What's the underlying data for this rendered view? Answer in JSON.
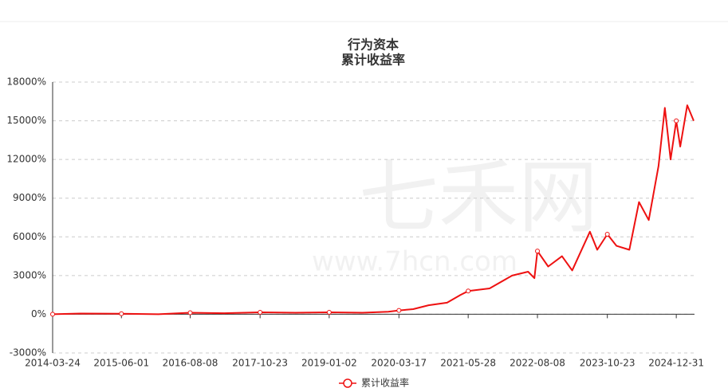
{
  "chart_data": {
    "type": "line",
    "title": "行为资本",
    "subtitle": "累计收益率",
    "watermark": [
      "七禾网",
      "www.7hcn.com"
    ],
    "x": [
      "2014-03-24",
      "2014-09-15",
      "2015-06-01",
      "2016-01-20",
      "2016-08-08",
      "2017-03-10",
      "2017-10-23",
      "2018-06-01",
      "2019-01-02",
      "2019-08-01",
      "2020-01-10",
      "2020-03-17",
      "2020-06-15",
      "2020-09-20",
      "2021-01-15",
      "2021-04-10",
      "2021-05-28",
      "2021-10-10",
      "2022-03-01",
      "2022-06-10",
      "2022-07-20",
      "2022-08-08",
      "2022-10-15",
      "2023-01-10",
      "2023-03-15",
      "2023-07-05",
      "2023-08-20",
      "2023-10-23",
      "2023-12-20",
      "2024-03-10",
      "2024-05-10",
      "2024-07-10",
      "2024-09-10",
      "2024-10-20",
      "2024-11-25",
      "2024-12-31",
      "2025-01-25",
      "2025-03-10",
      "2025-04-20"
    ],
    "series": [
      {
        "name": "累计收益率",
        "color": "#ee1111",
        "values": [
          0,
          60,
          40,
          0,
          120,
          80,
          150,
          120,
          150,
          120,
          200,
          300,
          400,
          700,
          900,
          1500,
          1800,
          2000,
          3000,
          3300,
          2800,
          4900,
          3700,
          4500,
          3400,
          6400,
          5000,
          6200,
          5300,
          5000,
          8700,
          7300,
          11500,
          16000,
          12000,
          15000,
          13000,
          16200,
          15000
        ]
      }
    ],
    "xlim": [
      "2014-03-24",
      "2025-04-25"
    ],
    "xticks": [
      "2014-03-24",
      "2015-06-01",
      "2016-08-08",
      "2017-10-23",
      "2019-01-02",
      "2020-03-17",
      "2021-05-28",
      "2022-08-08",
      "2023-10-23",
      "2024-12-31"
    ],
    "ylim": [
      -3000,
      18000
    ],
    "yticks": [
      {
        "value": -3000,
        "label": "-3000%"
      },
      {
        "value": 0,
        "label": "0%"
      },
      {
        "value": 3000,
        "label": "3000%"
      },
      {
        "value": 6000,
        "label": "6000%"
      },
      {
        "value": 9000,
        "label": "9000%"
      },
      {
        "value": 12000,
        "label": "12000%"
      },
      {
        "value": 15000,
        "label": "15000%"
      },
      {
        "value": 18000,
        "label": "18000%"
      }
    ],
    "grid": true,
    "legend": "bottom"
  }
}
